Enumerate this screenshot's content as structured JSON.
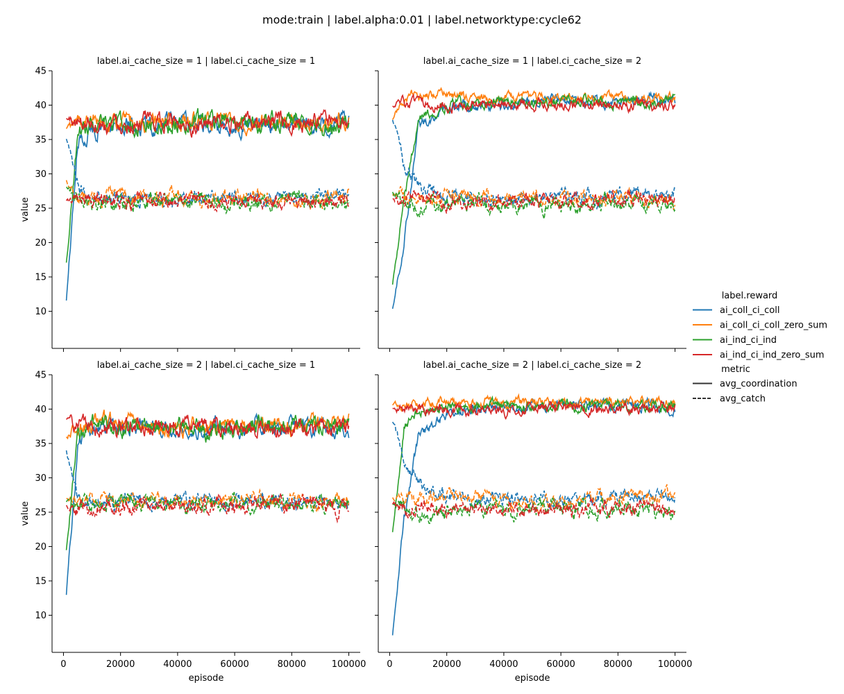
{
  "figure": {
    "title": "mode:train | label.alpha:0.01 | label.networktype:cycle62"
  },
  "chart_data": {
    "type": "line",
    "title": "mode:train | label.alpha:0.01 | label.networktype:cycle62",
    "xlabel": "episode",
    "ylabel": "value",
    "xlim": [
      -4000,
      104000
    ],
    "ylim": [
      4.6,
      45
    ],
    "x_ticks": [
      0,
      20000,
      40000,
      60000,
      80000,
      100000
    ],
    "y_ticks": [
      10,
      15,
      20,
      25,
      30,
      35,
      40,
      45
    ],
    "grid": false,
    "legend_position": "right",
    "legend": {
      "hue_title": "label.reward",
      "hue_entries": [
        {
          "name": "ai_coll_ci_coll",
          "color": "#1f77b4"
        },
        {
          "name": "ai_coll_ci_coll_zero_sum",
          "color": "#ff7f0e"
        },
        {
          "name": "ai_ind_ci_ind",
          "color": "#2ca02c"
        },
        {
          "name": "ai_ind_ci_ind_zero_sum",
          "color": "#d62728"
        }
      ],
      "style_title": "metric",
      "style_entries": [
        {
          "name": "avg_coordination",
          "dash": "solid"
        },
        {
          "name": "avg_catch",
          "dash": "dashed"
        }
      ]
    },
    "x_sampled": [
      1000,
      5000,
      10000,
      20000,
      30000,
      40000,
      50000,
      60000,
      70000,
      80000,
      90000,
      100000
    ],
    "panels": [
      {
        "title": "label.ai_cache_size = 1 | label.ci_cache_size = 1",
        "series": [
          {
            "reward": "ai_coll_ci_coll",
            "metric": "avg_coordination",
            "values": [
              11.5,
              34.5,
              36.5,
              37.0,
              37.0,
              37.2,
              37.0,
              37.0,
              37.2,
              37.0,
              37.2,
              37.5
            ],
            "noise": 1.6
          },
          {
            "reward": "ai_coll_ci_coll_zero_sum",
            "metric": "avg_coordination",
            "values": [
              36.5,
              37.5,
              37.5,
              37.5,
              37.2,
              37.5,
              37.5,
              37.5,
              37.2,
              37.5,
              37.2,
              38.0
            ],
            "noise": 1.6
          },
          {
            "reward": "ai_ind_ci_ind",
            "metric": "avg_coordination",
            "values": [
              17.0,
              36.0,
              37.0,
              37.0,
              37.0,
              37.5,
              38.0,
              37.5,
              37.5,
              37.5,
              37.0,
              37.5
            ],
            "noise": 1.7
          },
          {
            "reward": "ai_ind_ci_ind_zero_sum",
            "metric": "avg_coordination",
            "values": [
              38.0,
              37.5,
              37.5,
              37.5,
              37.5,
              37.5,
              37.2,
              37.0,
              37.5,
              37.5,
              37.5,
              37.0
            ],
            "noise": 1.6
          },
          {
            "reward": "ai_coll_ci_coll",
            "metric": "avg_catch",
            "values": [
              35.0,
              28.0,
              27.0,
              26.5,
              26.5,
              26.5,
              26.5,
              26.5,
              26.5,
              26.5,
              26.5,
              27.0
            ],
            "noise": 1.4
          },
          {
            "reward": "ai_coll_ci_coll_zero_sum",
            "metric": "avg_catch",
            "values": [
              29.0,
              27.0,
              26.5,
              26.5,
              26.5,
              26.5,
              26.0,
              26.5,
              26.5,
              26.5,
              26.0,
              27.0
            ],
            "noise": 1.4
          },
          {
            "reward": "ai_ind_ci_ind",
            "metric": "avg_catch",
            "values": [
              28.0,
              26.5,
              26.0,
              26.0,
              26.0,
              26.0,
              26.0,
              26.0,
              26.0,
              26.5,
              26.0,
              25.5
            ],
            "noise": 1.5
          },
          {
            "reward": "ai_ind_ci_ind_zero_sum",
            "metric": "avg_catch",
            "values": [
              26.0,
              26.0,
              26.0,
              26.0,
              26.0,
              26.0,
              26.0,
              26.0,
              26.0,
              26.0,
              26.0,
              26.0
            ],
            "noise": 1.4
          }
        ]
      },
      {
        "title": "label.ai_cache_size = 1 | label.ci_cache_size = 2",
        "series": [
          {
            "reward": "ai_coll_ci_coll",
            "metric": "avg_coordination",
            "values": [
              10.5,
              20.0,
              37.0,
              39.5,
              40.0,
              40.0,
              40.5,
              40.5,
              40.5,
              40.5,
              41.0,
              40.5
            ],
            "noise": 1.0
          },
          {
            "reward": "ai_coll_ci_coll_zero_sum",
            "metric": "avg_coordination",
            "values": [
              38.0,
              41.0,
              41.5,
              41.5,
              41.0,
              41.0,
              41.0,
              41.0,
              41.0,
              41.0,
              41.0,
              41.0
            ],
            "noise": 0.9
          },
          {
            "reward": "ai_ind_ci_ind",
            "metric": "avg_coordination",
            "values": [
              14.0,
              26.0,
              38.0,
              40.0,
              40.5,
              40.5,
              40.5,
              40.5,
              40.5,
              40.5,
              40.5,
              40.5
            ],
            "noise": 1.0
          },
          {
            "reward": "ai_ind_ci_ind_zero_sum",
            "metric": "avg_coordination",
            "values": [
              40.0,
              40.5,
              40.0,
              40.0,
              40.0,
              40.0,
              40.0,
              40.0,
              40.0,
              40.0,
              40.0,
              40.0
            ],
            "noise": 1.0
          },
          {
            "reward": "ai_coll_ci_coll",
            "metric": "avg_catch",
            "values": [
              38.0,
              32.0,
              28.0,
              26.5,
              26.5,
              26.5,
              26.5,
              26.5,
              26.5,
              27.0,
              27.0,
              27.0
            ],
            "noise": 1.3
          },
          {
            "reward": "ai_coll_ci_coll_zero_sum",
            "metric": "avg_catch",
            "values": [
              27.0,
              26.5,
              26.5,
              26.5,
              26.5,
              26.5,
              27.0,
              26.5,
              26.5,
              26.5,
              26.5,
              26.0
            ],
            "noise": 1.3
          },
          {
            "reward": "ai_ind_ci_ind",
            "metric": "avg_catch",
            "values": [
              27.5,
              26.0,
              25.5,
              25.5,
              25.5,
              25.5,
              25.5,
              25.5,
              25.5,
              26.0,
              25.5,
              25.5
            ],
            "noise": 1.4
          },
          {
            "reward": "ai_ind_ci_ind_zero_sum",
            "metric": "avg_catch",
            "values": [
              26.5,
              26.0,
              26.5,
              26.0,
              26.0,
              26.0,
              26.0,
              26.0,
              26.0,
              26.5,
              26.0,
              26.5
            ],
            "noise": 1.4
          }
        ]
      },
      {
        "title": "label.ai_cache_size = 2 | label.ci_cache_size = 1",
        "series": [
          {
            "reward": "ai_coll_ci_coll",
            "metric": "avg_coordination",
            "values": [
              13.0,
              35.0,
              37.0,
              37.5,
              37.5,
              37.5,
              37.5,
              37.5,
              37.5,
              37.5,
              37.0,
              37.0
            ],
            "noise": 1.6
          },
          {
            "reward": "ai_coll_ci_coll_zero_sum",
            "metric": "avg_coordination",
            "values": [
              36.0,
              37.5,
              38.0,
              38.0,
              37.5,
              37.5,
              37.5,
              37.5,
              37.5,
              37.5,
              37.5,
              38.0
            ],
            "noise": 1.6
          },
          {
            "reward": "ai_ind_ci_ind",
            "metric": "avg_coordination",
            "values": [
              19.5,
              36.0,
              37.5,
              37.5,
              37.5,
              37.5,
              37.0,
              37.5,
              37.5,
              38.0,
              37.5,
              37.5
            ],
            "noise": 1.7
          },
          {
            "reward": "ai_ind_ci_ind_zero_sum",
            "metric": "avg_coordination",
            "values": [
              38.5,
              37.5,
              37.5,
              37.5,
              37.5,
              37.5,
              37.5,
              37.0,
              37.5,
              37.0,
              37.0,
              37.0
            ],
            "noise": 1.6
          },
          {
            "reward": "ai_coll_ci_coll",
            "metric": "avg_catch",
            "values": [
              34.0,
              27.0,
              26.5,
              26.5,
              26.5,
              26.5,
              26.5,
              26.5,
              26.5,
              26.5,
              26.5,
              26.0
            ],
            "noise": 1.3
          },
          {
            "reward": "ai_coll_ci_coll_zero_sum",
            "metric": "avg_catch",
            "values": [
              27.0,
              26.5,
              26.5,
              26.5,
              26.5,
              26.5,
              26.5,
              26.5,
              27.0,
              26.5,
              26.5,
              26.5
            ],
            "noise": 1.3
          },
          {
            "reward": "ai_ind_ci_ind",
            "metric": "avg_catch",
            "values": [
              26.5,
              26.0,
              26.0,
              26.5,
              26.5,
              26.5,
              26.0,
              26.5,
              26.5,
              26.0,
              26.0,
              26.0
            ],
            "noise": 1.4
          },
          {
            "reward": "ai_ind_ci_ind_zero_sum",
            "metric": "avg_catch",
            "values": [
              26.0,
              25.5,
              26.0,
              26.0,
              26.0,
              26.0,
              26.0,
              26.0,
              26.5,
              26.0,
              26.0,
              25.5
            ],
            "noise": 1.5
          }
        ]
      },
      {
        "title": "label.ai_cache_size = 2 | label.ci_cache_size = 2",
        "series": [
          {
            "reward": "ai_coll_ci_coll",
            "metric": "avg_coordination",
            "values": [
              7.0,
              24.0,
              36.0,
              39.5,
              40.0,
              40.5,
              40.5,
              40.5,
              41.0,
              40.5,
              40.5,
              40.0
            ],
            "noise": 1.0
          },
          {
            "reward": "ai_coll_ci_coll_zero_sum",
            "metric": "avg_coordination",
            "values": [
              40.5,
              41.0,
              41.0,
              41.0,
              41.0,
              41.0,
              41.0,
              41.0,
              41.0,
              41.0,
              41.0,
              41.0
            ],
            "noise": 0.9
          },
          {
            "reward": "ai_ind_ci_ind",
            "metric": "avg_coordination",
            "values": [
              22.0,
              37.5,
              39.5,
              40.0,
              40.5,
              40.5,
              40.5,
              40.5,
              40.5,
              40.5,
              40.5,
              40.5
            ],
            "noise": 1.0
          },
          {
            "reward": "ai_ind_ci_ind_zero_sum",
            "metric": "avg_coordination",
            "values": [
              40.0,
              40.0,
              40.0,
              40.0,
              40.0,
              39.5,
              40.0,
              40.0,
              40.0,
              40.0,
              40.0,
              40.5
            ],
            "noise": 1.0
          },
          {
            "reward": "ai_coll_ci_coll",
            "metric": "avg_catch",
            "values": [
              38.0,
              33.0,
              29.0,
              27.0,
              27.0,
              27.0,
              27.0,
              26.5,
              27.0,
              27.0,
              27.0,
              27.5
            ],
            "noise": 1.3
          },
          {
            "reward": "ai_coll_ci_coll_zero_sum",
            "metric": "avg_catch",
            "values": [
              27.0,
              26.5,
              27.0,
              27.0,
              27.0,
              26.5,
              26.5,
              26.5,
              26.5,
              27.5,
              27.0,
              27.5
            ],
            "noise": 1.3
          },
          {
            "reward": "ai_ind_ci_ind",
            "metric": "avg_catch",
            "values": [
              26.0,
              25.5,
              25.0,
              25.0,
              25.5,
              25.5,
              25.5,
              25.5,
              25.5,
              25.5,
              25.5,
              25.5
            ],
            "noise": 1.5
          },
          {
            "reward": "ai_ind_ci_ind_zero_sum",
            "metric": "avg_catch",
            "values": [
              26.0,
              25.5,
              25.5,
              25.5,
              25.5,
              25.5,
              25.5,
              25.5,
              25.5,
              25.5,
              25.5,
              25.0
            ],
            "noise": 1.4
          }
        ]
      }
    ]
  }
}
